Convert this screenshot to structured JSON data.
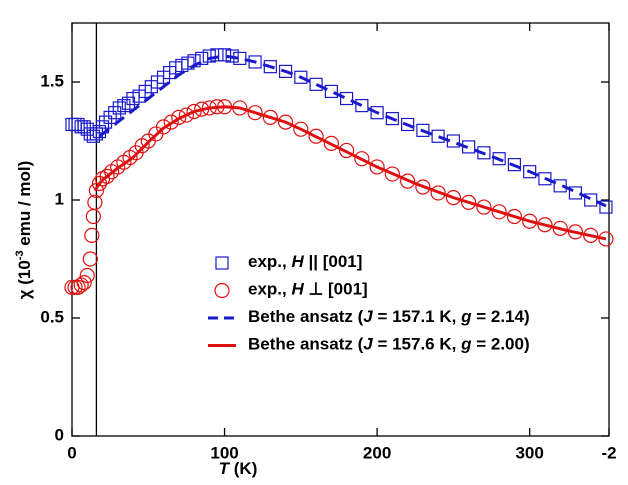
{
  "chart_data": {
    "type": "scatter-line",
    "xlabel": "T (K)",
    "ylabel": [
      "χ (10",
      "-3",
      " emu / mol)"
    ],
    "xlim": [
      0,
      352
    ],
    "xticks": [
      0,
      100,
      200,
      300,
      {
        "value": 352,
        "label": "-2"
      }
    ],
    "ylim": [
      0,
      1.75
    ],
    "yticks": [
      0,
      0.5,
      1,
      1.5
    ],
    "vline": 16,
    "legend": "center",
    "series": [
      {
        "name": "exp., H || [001]",
        "color": "#1a1acc",
        "marker": "square",
        "x": [
          0,
          2,
          4,
          6,
          8,
          10,
          12,
          14,
          16,
          18,
          20,
          22,
          25,
          28,
          31,
          34,
          37,
          40,
          44,
          48,
          52,
          56,
          60,
          64,
          68,
          72,
          76,
          80,
          85,
          90,
          95,
          100,
          105,
          110,
          120,
          130,
          140,
          150,
          160,
          170,
          180,
          190,
          200,
          210,
          220,
          230,
          240,
          250,
          260,
          270,
          280,
          290,
          300,
          310,
          320,
          330,
          340,
          350
        ],
        "values": [
          1.32,
          1.32,
          1.32,
          1.31,
          1.31,
          1.3,
          1.28,
          1.27,
          1.28,
          1.29,
          1.31,
          1.33,
          1.35,
          1.37,
          1.39,
          1.4,
          1.41,
          1.43,
          1.44,
          1.46,
          1.48,
          1.5,
          1.52,
          1.54,
          1.56,
          1.57,
          1.58,
          1.59,
          1.6,
          1.61,
          1.615,
          1.615,
          1.61,
          1.6,
          1.585,
          1.565,
          1.545,
          1.52,
          1.49,
          1.46,
          1.43,
          1.4,
          1.37,
          1.345,
          1.32,
          1.295,
          1.27,
          1.25,
          1.225,
          1.2,
          1.175,
          1.15,
          1.12,
          1.09,
          1.06,
          1.03,
          1,
          0.97
        ]
      },
      {
        "name": "exp., H ⊥ [001]",
        "color": "#e01010",
        "marker": "circle",
        "x": [
          0,
          2,
          4,
          6,
          8,
          10,
          12,
          13,
          14,
          15,
          16,
          18,
          20,
          23,
          26,
          30,
          34,
          38,
          42,
          46,
          50,
          55,
          60,
          65,
          70,
          75,
          80,
          85,
          90,
          95,
          100,
          110,
          120,
          130,
          140,
          150,
          160,
          170,
          180,
          190,
          200,
          210,
          220,
          230,
          240,
          250,
          260,
          270,
          280,
          290,
          300,
          310,
          320,
          330,
          340,
          350
        ],
        "values": [
          0.63,
          0.63,
          0.63,
          0.64,
          0.65,
          0.68,
          0.75,
          0.85,
          0.93,
          0.99,
          1.04,
          1.07,
          1.09,
          1.1,
          1.12,
          1.14,
          1.16,
          1.18,
          1.2,
          1.23,
          1.25,
          1.28,
          1.31,
          1.33,
          1.35,
          1.36,
          1.375,
          1.385,
          1.39,
          1.395,
          1.395,
          1.39,
          1.37,
          1.35,
          1.33,
          1.3,
          1.27,
          1.24,
          1.21,
          1.175,
          1.14,
          1.11,
          1.08,
          1.055,
          1.03,
          1.01,
          0.99,
          0.97,
          0.95,
          0.93,
          0.91,
          0.895,
          0.88,
          0.865,
          0.85,
          0.835
        ]
      },
      {
        "name": "Bethe ansatz (J = 157.1 K, g = 2.14)",
        "color": "#1a1acc",
        "marker": "dash",
        "x": [
          18,
          20,
          30,
          40,
          50,
          60,
          70,
          80,
          90,
          100,
          110,
          120,
          130,
          140,
          150,
          175,
          200,
          225,
          250,
          275,
          300,
          325,
          350
        ],
        "values": [
          1.27,
          1.28,
          1.33,
          1.38,
          1.43,
          1.48,
          1.53,
          1.57,
          1.6,
          1.61,
          1.6,
          1.585,
          1.565,
          1.545,
          1.52,
          1.445,
          1.37,
          1.305,
          1.245,
          1.185,
          1.12,
          1.05,
          0.975
        ]
      },
      {
        "name": "Bethe ansatz (J = 157.6 K, g = 2.00)",
        "color": "#e01010",
        "marker": "line",
        "x": [
          15,
          18,
          20,
          25,
          30,
          40,
          50,
          60,
          70,
          80,
          90,
          100,
          110,
          120,
          130,
          140,
          150,
          175,
          200,
          225,
          250,
          275,
          300,
          325,
          350
        ],
        "values": [
          1.04,
          1.07,
          1.085,
          1.11,
          1.135,
          1.18,
          1.245,
          1.305,
          1.345,
          1.375,
          1.39,
          1.395,
          1.39,
          1.37,
          1.35,
          1.33,
          1.3,
          1.22,
          1.14,
          1.07,
          1.01,
          0.96,
          0.91,
          0.87,
          0.835
        ]
      }
    ]
  }
}
